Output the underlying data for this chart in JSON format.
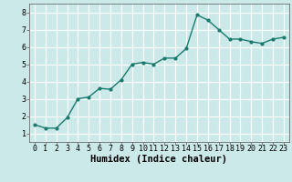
{
  "x": [
    0,
    1,
    2,
    3,
    4,
    5,
    6,
    7,
    8,
    9,
    10,
    11,
    12,
    13,
    14,
    15,
    16,
    17,
    18,
    19,
    20,
    21,
    22,
    23
  ],
  "y": [
    1.5,
    1.3,
    1.3,
    1.9,
    3.0,
    3.1,
    3.6,
    3.55,
    4.1,
    5.0,
    5.1,
    5.0,
    5.35,
    5.35,
    5.9,
    7.85,
    7.55,
    7.0,
    6.45,
    6.45,
    6.3,
    6.2,
    6.45,
    6.55
  ],
  "line_color": "#1a7a6e",
  "marker": "o",
  "marker_size": 2.0,
  "bg_color": "#cce9e9",
  "grid_color": "#ffffff",
  "xlabel": "Humidex (Indice chaleur)",
  "xlabel_fontsize": 7.5,
  "xlim": [
    -0.5,
    23.5
  ],
  "ylim": [
    0.5,
    8.5
  ],
  "yticks": [
    1,
    2,
    3,
    4,
    5,
    6,
    7,
    8
  ],
  "xticks": [
    0,
    1,
    2,
    3,
    4,
    5,
    6,
    7,
    8,
    9,
    10,
    11,
    12,
    13,
    14,
    15,
    16,
    17,
    18,
    19,
    20,
    21,
    22,
    23
  ],
  "tick_fontsize": 6.0,
  "linewidth": 1.0
}
